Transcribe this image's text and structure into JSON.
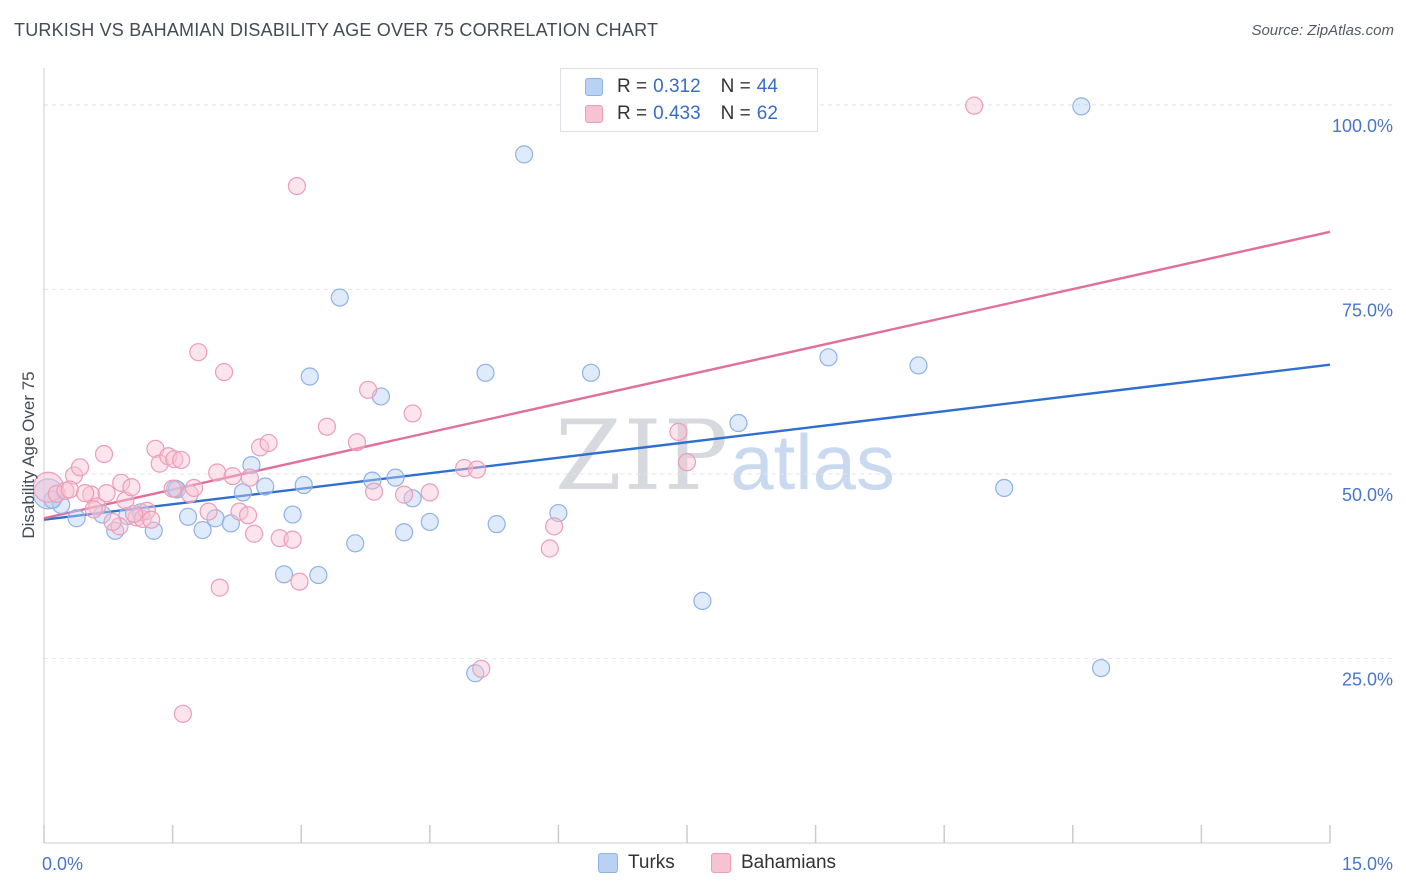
{
  "header": {
    "title": "TURKISH VS BAHAMIAN DISABILITY AGE OVER 75 CORRELATION CHART",
    "source": "Source: ZipAtlas.com"
  },
  "watermark": {
    "zip": "ZIP",
    "atlas": "atlas"
  },
  "legend": {
    "r_label": "R =",
    "n_label": "N =",
    "series": [
      {
        "name": "Turks",
        "r": "0.312",
        "n": "44"
      },
      {
        "name": "Bahamians",
        "r": "0.433",
        "n": "62"
      }
    ]
  },
  "chart_data": {
    "type": "scatter",
    "title": "TURKISH VS BAHAMIAN DISABILITY AGE OVER 75 CORRELATION CHART",
    "xlabel": "",
    "ylabel": "Disability Age Over 75",
    "xlim": [
      0,
      15
    ],
    "ylim": [
      0,
      105
    ],
    "x_tick_labels": [
      {
        "value": 0,
        "label": "0.0%"
      },
      {
        "value": 15,
        "label": "15.0%"
      }
    ],
    "y_tick_labels": [
      {
        "value": 25,
        "label": "25.0%"
      },
      {
        "value": 50,
        "label": "50.0%"
      },
      {
        "value": 75,
        "label": "75.0%"
      },
      {
        "value": 100,
        "label": "100.0%"
      }
    ],
    "grid": true,
    "legend_placement": "top-center",
    "colors": {
      "turks_fill": "#b9d1f3",
      "turks_stroke": "#8fb2e6",
      "turks_line": "#2f6fcf",
      "bahamians_fill": "#f7c3d3",
      "bahamians_stroke": "#ec9db8",
      "bahamians_line": "#e0709a"
    },
    "series": [
      {
        "name": "Turks",
        "trend": {
          "x": [
            0,
            15
          ],
          "y": [
            43.8,
            64.8
          ]
        },
        "points": [
          {
            "x": 0.05,
            "y": 47.3,
            "big": true
          },
          {
            "x": 0.2,
            "y": 45.8
          },
          {
            "x": 0.38,
            "y": 44.0
          },
          {
            "x": 0.68,
            "y": 44.5
          },
          {
            "x": 0.83,
            "y": 42.3
          },
          {
            "x": 0.97,
            "y": 44.3
          },
          {
            "x": 1.13,
            "y": 44.8
          },
          {
            "x": 1.28,
            "y": 42.3
          },
          {
            "x": 1.53,
            "y": 48.0
          },
          {
            "x": 1.68,
            "y": 44.2
          },
          {
            "x": 1.85,
            "y": 42.4
          },
          {
            "x": 2.0,
            "y": 44.0
          },
          {
            "x": 2.18,
            "y": 43.3
          },
          {
            "x": 2.32,
            "y": 47.5
          },
          {
            "x": 2.42,
            "y": 51.2
          },
          {
            "x": 2.58,
            "y": 48.3
          },
          {
            "x": 2.8,
            "y": 36.4
          },
          {
            "x": 2.9,
            "y": 44.5
          },
          {
            "x": 3.03,
            "y": 48.5
          },
          {
            "x": 3.2,
            "y": 36.3
          },
          {
            "x": 3.1,
            "y": 63.2
          },
          {
            "x": 3.45,
            "y": 73.9
          },
          {
            "x": 3.63,
            "y": 40.6
          },
          {
            "x": 3.83,
            "y": 49.1
          },
          {
            "x": 3.93,
            "y": 60.5
          },
          {
            "x": 4.1,
            "y": 49.5
          },
          {
            "x": 4.2,
            "y": 42.1
          },
          {
            "x": 4.3,
            "y": 46.7
          },
          {
            "x": 4.5,
            "y": 43.5
          },
          {
            "x": 5.03,
            "y": 23.0
          },
          {
            "x": 5.15,
            "y": 63.7
          },
          {
            "x": 5.28,
            "y": 43.2
          },
          {
            "x": 5.6,
            "y": 93.3
          },
          {
            "x": 6.0,
            "y": 44.7
          },
          {
            "x": 6.38,
            "y": 63.7
          },
          {
            "x": 7.68,
            "y": 32.8
          },
          {
            "x": 8.1,
            "y": 56.9
          },
          {
            "x": 9.15,
            "y": 65.8
          },
          {
            "x": 10.2,
            "y": 64.7
          },
          {
            "x": 11.2,
            "y": 48.1
          },
          {
            "x": 12.1,
            "y": 99.8
          },
          {
            "x": 12.33,
            "y": 23.7
          },
          {
            "x": 0.1,
            "y": 46.5
          },
          {
            "x": 1.55,
            "y": 47.9
          }
        ]
      },
      {
        "name": "Bahamians",
        "trend": {
          "x": [
            0,
            15
          ],
          "y": [
            44.0,
            82.8
          ]
        },
        "points": [
          {
            "x": 0.05,
            "y": 48.2,
            "big": true
          },
          {
            "x": 0.15,
            "y": 47.3
          },
          {
            "x": 0.25,
            "y": 47.7
          },
          {
            "x": 0.35,
            "y": 49.8
          },
          {
            "x": 0.42,
            "y": 50.9
          },
          {
            "x": 0.55,
            "y": 47.2
          },
          {
            "x": 0.62,
            "y": 45.6
          },
          {
            "x": 0.73,
            "y": 47.4
          },
          {
            "x": 0.7,
            "y": 52.7
          },
          {
            "x": 0.88,
            "y": 42.9
          },
          {
            "x": 0.95,
            "y": 46.4
          },
          {
            "x": 0.9,
            "y": 48.8
          },
          {
            "x": 1.02,
            "y": 48.2
          },
          {
            "x": 1.08,
            "y": 44.1
          },
          {
            "x": 1.15,
            "y": 43.9
          },
          {
            "x": 1.2,
            "y": 45.0
          },
          {
            "x": 1.3,
            "y": 53.4
          },
          {
            "x": 1.35,
            "y": 51.4
          },
          {
            "x": 1.45,
            "y": 52.4
          },
          {
            "x": 1.52,
            "y": 52.0
          },
          {
            "x": 1.6,
            "y": 51.9
          },
          {
            "x": 1.62,
            "y": 17.5
          },
          {
            "x": 1.7,
            "y": 47.3
          },
          {
            "x": 1.75,
            "y": 48.1
          },
          {
            "x": 1.8,
            "y": 66.5
          },
          {
            "x": 1.92,
            "y": 44.9
          },
          {
            "x": 2.02,
            "y": 50.2
          },
          {
            "x": 2.05,
            "y": 34.6
          },
          {
            "x": 2.1,
            "y": 63.8
          },
          {
            "x": 2.2,
            "y": 49.7
          },
          {
            "x": 2.28,
            "y": 44.9
          },
          {
            "x": 2.38,
            "y": 44.4
          },
          {
            "x": 2.45,
            "y": 41.9
          },
          {
            "x": 2.52,
            "y": 53.6
          },
          {
            "x": 2.62,
            "y": 54.2
          },
          {
            "x": 2.75,
            "y": 41.3
          },
          {
            "x": 2.9,
            "y": 41.1
          },
          {
            "x": 2.98,
            "y": 35.4
          },
          {
            "x": 2.95,
            "y": 89.0
          },
          {
            "x": 3.3,
            "y": 56.4
          },
          {
            "x": 3.65,
            "y": 54.3
          },
          {
            "x": 3.78,
            "y": 61.4
          },
          {
            "x": 3.85,
            "y": 47.6
          },
          {
            "x": 4.3,
            "y": 58.2
          },
          {
            "x": 4.5,
            "y": 47.5
          },
          {
            "x": 4.9,
            "y": 50.8
          },
          {
            "x": 5.05,
            "y": 50.6
          },
          {
            "x": 5.1,
            "y": 23.6
          },
          {
            "x": 5.95,
            "y": 42.9
          },
          {
            "x": 5.9,
            "y": 39.9
          },
          {
            "x": 7.4,
            "y": 55.7
          },
          {
            "x": 7.5,
            "y": 51.6
          },
          {
            "x": 10.85,
            "y": 99.9
          },
          {
            "x": 0.3,
            "y": 47.9
          },
          {
            "x": 0.48,
            "y": 47.4
          },
          {
            "x": 0.58,
            "y": 45.2
          },
          {
            "x": 1.05,
            "y": 44.6
          },
          {
            "x": 1.25,
            "y": 43.8
          },
          {
            "x": 1.5,
            "y": 48.0
          },
          {
            "x": 2.4,
            "y": 49.5
          },
          {
            "x": 0.8,
            "y": 43.5
          },
          {
            "x": 4.2,
            "y": 47.2
          }
        ]
      }
    ]
  }
}
